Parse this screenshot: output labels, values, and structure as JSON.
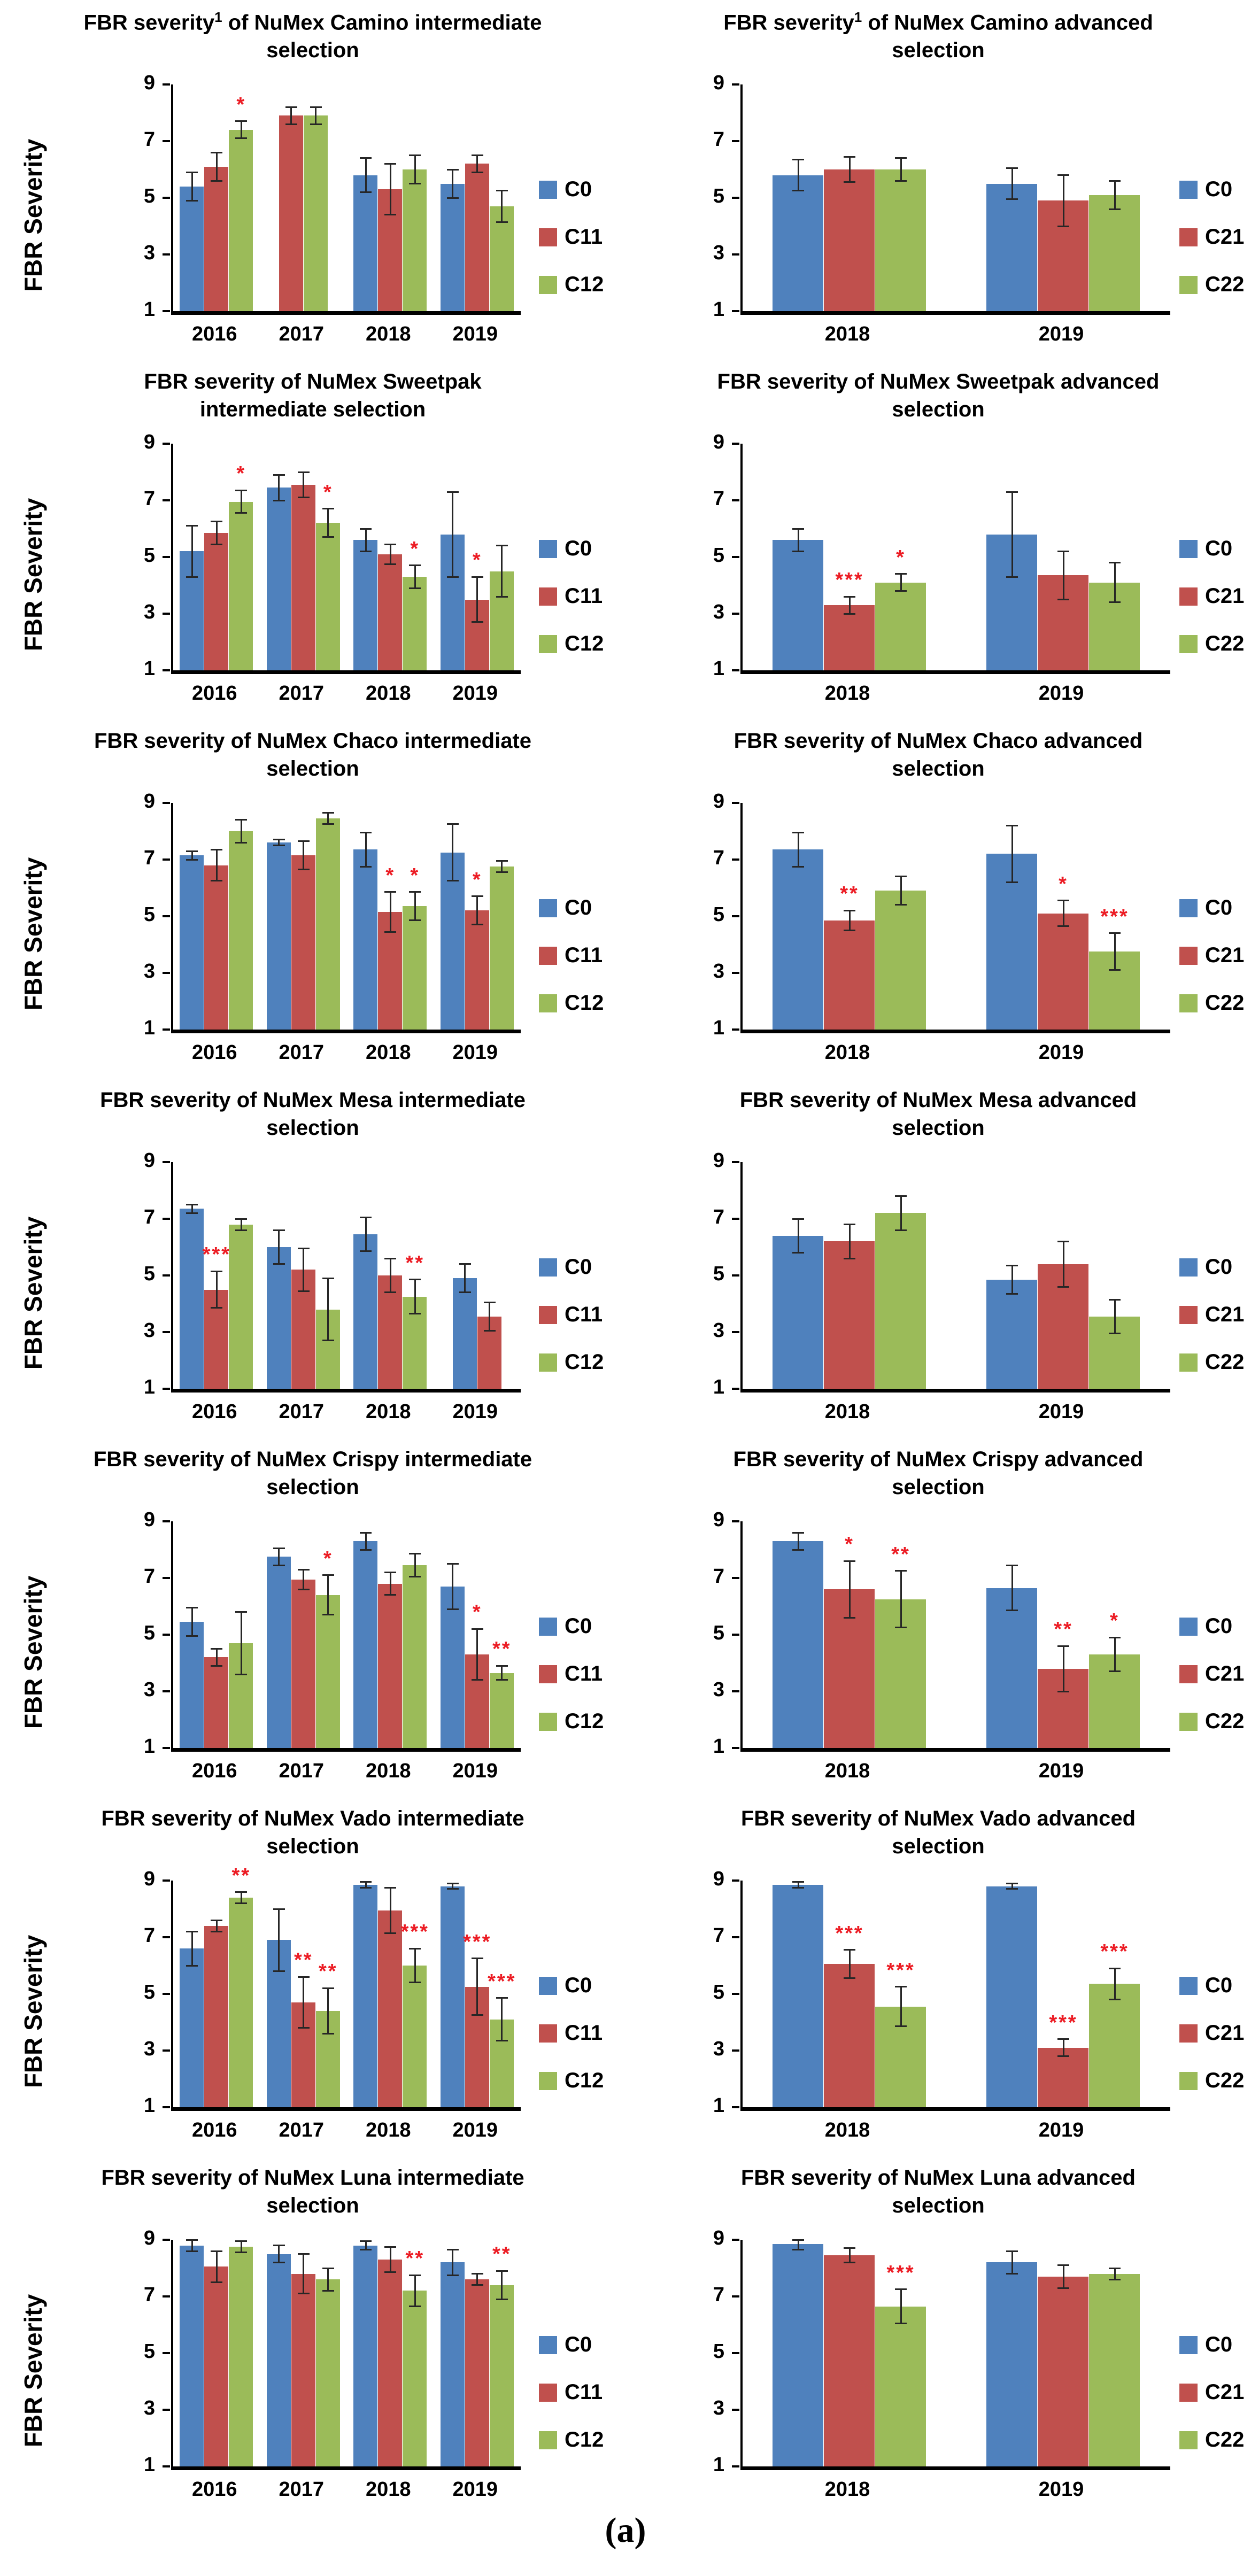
{
  "figure": {
    "ylabel": "FBR Severity",
    "panel_label": "(a)",
    "series_colors": {
      "C0": "#4F81BD",
      "C11": "#C0504D",
      "C12": "#9BBB59",
      "C21": "#C0504D",
      "C22": "#9BBB59"
    },
    "significance_color": "#EC1C24",
    "error_bar_color": "#262626"
  },
  "chart_data": [
    {
      "type": "bar",
      "variety": "Camino",
      "selection": "intermediate",
      "title_pre": "FBR severity",
      "title_sup": "1",
      "title_post": " of NuMex Camino intermediate selection",
      "categories": [
        "2016",
        "2017",
        "2018",
        "2019"
      ],
      "ylim": [
        1,
        9
      ],
      "yticks": [
        9,
        7,
        5,
        3,
        1
      ],
      "series": [
        {
          "name": "C0",
          "values": [
            5.4,
            null,
            5.8,
            5.5
          ],
          "errors": [
            0.5,
            null,
            0.6,
            0.5
          ],
          "sig": [
            "",
            "",
            "",
            ""
          ]
        },
        {
          "name": "C11",
          "values": [
            6.1,
            7.9,
            5.3,
            6.2
          ],
          "errors": [
            0.5,
            0.3,
            0.9,
            0.3
          ],
          "sig": [
            "",
            "",
            "",
            ""
          ]
        },
        {
          "name": "C12",
          "values": [
            7.4,
            7.9,
            6.0,
            4.7
          ],
          "errors": [
            0.3,
            0.3,
            0.5,
            0.55
          ],
          "sig": [
            "*",
            "",
            "",
            ""
          ]
        }
      ]
    },
    {
      "type": "bar",
      "variety": "Camino",
      "selection": "advanced",
      "title_pre": "FBR severity",
      "title_sup": "1",
      "title_post": " of NuMex Camino advanced selection",
      "categories": [
        "2018",
        "2019"
      ],
      "ylim": [
        1,
        9
      ],
      "yticks": [
        9,
        7,
        5,
        3,
        1
      ],
      "series": [
        {
          "name": "C0",
          "values": [
            5.8,
            5.5
          ],
          "errors": [
            0.55,
            0.55
          ],
          "sig": [
            "",
            ""
          ]
        },
        {
          "name": "C21",
          "values": [
            6.0,
            4.9
          ],
          "errors": [
            0.45,
            0.9
          ],
          "sig": [
            "",
            ""
          ]
        },
        {
          "name": "C22",
          "values": [
            6.0,
            5.1
          ],
          "errors": [
            0.4,
            0.5
          ],
          "sig": [
            "",
            ""
          ]
        }
      ]
    },
    {
      "type": "bar",
      "variety": "Sweetpak",
      "selection": "intermediate",
      "title_pre": "FBR severity",
      "title_sup": "",
      "title_post": " of NuMex Sweetpak intermediate selection",
      "categories": [
        "2016",
        "2017",
        "2018",
        "2019"
      ],
      "ylim": [
        1,
        9
      ],
      "yticks": [
        9,
        7,
        5,
        3,
        1
      ],
      "series": [
        {
          "name": "C0",
          "values": [
            5.2,
            7.45,
            5.6,
            5.8
          ],
          "errors": [
            0.9,
            0.45,
            0.4,
            1.5
          ],
          "sig": [
            "",
            "",
            "",
            ""
          ]
        },
        {
          "name": "C11",
          "values": [
            5.85,
            7.55,
            5.1,
            3.5
          ],
          "errors": [
            0.4,
            0.45,
            0.35,
            0.8
          ],
          "sig": [
            "",
            "",
            "",
            "*"
          ]
        },
        {
          "name": "C12",
          "values": [
            6.95,
            6.2,
            4.3,
            4.5
          ],
          "errors": [
            0.4,
            0.5,
            0.4,
            0.9
          ],
          "sig": [
            "*",
            "*",
            "*",
            ""
          ]
        }
      ]
    },
    {
      "type": "bar",
      "variety": "Sweetpak",
      "selection": "advanced",
      "title_pre": "FBR severity",
      "title_sup": "",
      "title_post": " of NuMex Sweetpak advanced selection",
      "categories": [
        "2018",
        "2019"
      ],
      "ylim": [
        1,
        9
      ],
      "yticks": [
        9,
        7,
        5,
        3,
        1
      ],
      "series": [
        {
          "name": "C0",
          "values": [
            5.6,
            5.8
          ],
          "errors": [
            0.4,
            1.5
          ],
          "sig": [
            "",
            ""
          ]
        },
        {
          "name": "C21",
          "values": [
            3.3,
            4.35
          ],
          "errors": [
            0.3,
            0.85
          ],
          "sig": [
            "***",
            ""
          ]
        },
        {
          "name": "C22",
          "values": [
            4.1,
            4.1
          ],
          "errors": [
            0.3,
            0.7
          ],
          "sig": [
            "*",
            ""
          ]
        }
      ]
    },
    {
      "type": "bar",
      "variety": "Chaco",
      "selection": "intermediate",
      "title_pre": "FBR severity",
      "title_sup": "",
      "title_post": " of NuMex Chaco intermediate selection",
      "categories": [
        "2016",
        "2017",
        "2018",
        "2019"
      ],
      "ylim": [
        1,
        9
      ],
      "yticks": [
        9,
        7,
        5,
        3,
        1
      ],
      "series": [
        {
          "name": "C0",
          "values": [
            7.15,
            7.6,
            7.35,
            7.25
          ],
          "errors": [
            0.15,
            0.1,
            0.6,
            1.0
          ],
          "sig": [
            "",
            "",
            "",
            ""
          ]
        },
        {
          "name": "C11",
          "values": [
            6.8,
            7.15,
            5.15,
            5.2
          ],
          "errors": [
            0.55,
            0.5,
            0.7,
            0.5
          ],
          "sig": [
            "",
            "",
            "*",
            "*"
          ]
        },
        {
          "name": "C12",
          "values": [
            8.0,
            8.45,
            5.35,
            6.75
          ],
          "errors": [
            0.4,
            0.2,
            0.5,
            0.2
          ],
          "sig": [
            "",
            "",
            "*",
            ""
          ]
        }
      ]
    },
    {
      "type": "bar",
      "variety": "Chaco",
      "selection": "advanced",
      "title_pre": "FBR severity",
      "title_sup": "",
      "title_post": " of NuMex Chaco advanced selection",
      "categories": [
        "2018",
        "2019"
      ],
      "ylim": [
        1,
        9
      ],
      "yticks": [
        9,
        7,
        5,
        3,
        1
      ],
      "series": [
        {
          "name": "C0",
          "values": [
            7.35,
            7.2
          ],
          "errors": [
            0.6,
            1.0
          ],
          "sig": [
            "",
            ""
          ]
        },
        {
          "name": "C21",
          "values": [
            4.85,
            5.1
          ],
          "errors": [
            0.35,
            0.45
          ],
          "sig": [
            "**",
            "*"
          ]
        },
        {
          "name": "C22",
          "values": [
            5.9,
            3.75
          ],
          "errors": [
            0.5,
            0.65
          ],
          "sig": [
            "",
            "***"
          ]
        }
      ]
    },
    {
      "type": "bar",
      "variety": "Mesa",
      "selection": "intermediate",
      "title_pre": "FBR severity",
      "title_sup": "",
      "title_post": " of NuMex Mesa intermediate selection",
      "categories": [
        "2016",
        "2017",
        "2018",
        "2019"
      ],
      "ylim": [
        1,
        9
      ],
      "yticks": [
        9,
        7,
        5,
        3,
        1
      ],
      "series": [
        {
          "name": "C0",
          "values": [
            7.35,
            6.0,
            6.45,
            4.9
          ],
          "errors": [
            0.15,
            0.6,
            0.6,
            0.5
          ],
          "sig": [
            "",
            "",
            "",
            ""
          ]
        },
        {
          "name": "C11",
          "values": [
            4.5,
            5.2,
            5.0,
            3.55
          ],
          "errors": [
            0.65,
            0.75,
            0.6,
            0.5
          ],
          "sig": [
            "***",
            "",
            "",
            ""
          ]
        },
        {
          "name": "C12",
          "values": [
            6.8,
            3.8,
            4.25,
            null
          ],
          "errors": [
            0.2,
            1.1,
            0.6,
            null
          ],
          "sig": [
            "",
            "",
            "**",
            ""
          ]
        }
      ]
    },
    {
      "type": "bar",
      "variety": "Mesa",
      "selection": "advanced",
      "title_pre": "FBR severity",
      "title_sup": "",
      "title_post": " of NuMex Mesa advanced selection",
      "categories": [
        "2018",
        "2019"
      ],
      "ylim": [
        1,
        9
      ],
      "yticks": [
        9,
        7,
        5,
        3,
        1
      ],
      "series": [
        {
          "name": "C0",
          "values": [
            6.4,
            4.85
          ],
          "errors": [
            0.6,
            0.5
          ],
          "sig": [
            "",
            ""
          ]
        },
        {
          "name": "C21",
          "values": [
            6.2,
            5.4
          ],
          "errors": [
            0.6,
            0.8
          ],
          "sig": [
            "",
            ""
          ]
        },
        {
          "name": "C22",
          "values": [
            7.2,
            3.55
          ],
          "errors": [
            0.6,
            0.6
          ],
          "sig": [
            "",
            ""
          ]
        }
      ]
    },
    {
      "type": "bar",
      "variety": "Crispy",
      "selection": "intermediate",
      "title_pre": "FBR severity",
      "title_sup": "",
      "title_post": " of NuMex Crispy intermediate selection",
      "categories": [
        "2016",
        "2017",
        "2018",
        "2019"
      ],
      "ylim": [
        1,
        9
      ],
      "yticks": [
        9,
        7,
        5,
        3,
        1
      ],
      "series": [
        {
          "name": "C0",
          "values": [
            5.45,
            7.75,
            8.3,
            6.7
          ],
          "errors": [
            0.5,
            0.3,
            0.3,
            0.8
          ],
          "sig": [
            "",
            "",
            "",
            ""
          ]
        },
        {
          "name": "C11",
          "values": [
            4.2,
            6.95,
            6.8,
            4.3
          ],
          "errors": [
            0.3,
            0.35,
            0.4,
            0.9
          ],
          "sig": [
            "",
            "",
            "",
            "*"
          ]
        },
        {
          "name": "C12",
          "values": [
            4.7,
            6.4,
            7.45,
            3.65
          ],
          "errors": [
            1.1,
            0.7,
            0.4,
            0.25
          ],
          "sig": [
            "",
            "*",
            "",
            "**"
          ]
        }
      ]
    },
    {
      "type": "bar",
      "variety": "Crispy",
      "selection": "advanced",
      "title_pre": "FBR severity",
      "title_sup": "",
      "title_post": " of NuMex Crispy advanced selection",
      "categories": [
        "2018",
        "2019"
      ],
      "ylim": [
        1,
        9
      ],
      "yticks": [
        9,
        7,
        5,
        3,
        1
      ],
      "series": [
        {
          "name": "C0",
          "values": [
            8.3,
            6.65
          ],
          "errors": [
            0.3,
            0.8
          ],
          "sig": [
            "",
            ""
          ]
        },
        {
          "name": "C21",
          "values": [
            6.6,
            3.8
          ],
          "errors": [
            1.0,
            0.8
          ],
          "sig": [
            "*",
            "**"
          ]
        },
        {
          "name": "C22",
          "values": [
            6.25,
            4.3
          ],
          "errors": [
            1.0,
            0.6
          ],
          "sig": [
            "**",
            "*"
          ]
        }
      ]
    },
    {
      "type": "bar",
      "variety": "Vado",
      "selection": "intermediate",
      "title_pre": "FBR severity",
      "title_sup": "",
      "title_post": " of NuMex Vado intermediate selection",
      "categories": [
        "2016",
        "2017",
        "2018",
        "2019"
      ],
      "ylim": [
        1,
        9
      ],
      "yticks": [
        9,
        7,
        5,
        3,
        1
      ],
      "series": [
        {
          "name": "C0",
          "values": [
            6.6,
            6.9,
            8.85,
            8.8
          ],
          "errors": [
            0.6,
            1.1,
            0.1,
            0.1
          ],
          "sig": [
            "",
            "",
            "",
            ""
          ]
        },
        {
          "name": "C11",
          "values": [
            7.4,
            4.7,
            7.95,
            5.25
          ],
          "errors": [
            0.2,
            0.9,
            0.8,
            1.0
          ],
          "sig": [
            "",
            "**",
            "",
            "***"
          ]
        },
        {
          "name": "C12",
          "values": [
            8.4,
            4.4,
            6.0,
            4.1
          ],
          "errors": [
            0.2,
            0.8,
            0.6,
            0.75
          ],
          "sig": [
            "**",
            "**",
            "***",
            "***"
          ]
        }
      ]
    },
    {
      "type": "bar",
      "variety": "Vado",
      "selection": "advanced",
      "title_pre": "FBR severity",
      "title_sup": "",
      "title_post": " of NuMex Vado advanced selection",
      "categories": [
        "2018",
        "2019"
      ],
      "ylim": [
        1,
        9
      ],
      "yticks": [
        9,
        7,
        5,
        3,
        1
      ],
      "series": [
        {
          "name": "C0",
          "values": [
            8.85,
            8.8
          ],
          "errors": [
            0.1,
            0.1
          ],
          "sig": [
            "",
            ""
          ]
        },
        {
          "name": "C21",
          "values": [
            6.05,
            3.1
          ],
          "errors": [
            0.5,
            0.3
          ],
          "sig": [
            "***",
            "***"
          ]
        },
        {
          "name": "C22",
          "values": [
            4.55,
            5.35
          ],
          "errors": [
            0.7,
            0.55
          ],
          "sig": [
            "***",
            "***"
          ]
        }
      ]
    },
    {
      "type": "bar",
      "variety": "Luna",
      "selection": "intermediate",
      "title_pre": "FBR severity",
      "title_sup": "",
      "title_post": " of NuMex Luna intermediate selection",
      "categories": [
        "2016",
        "2017",
        "2018",
        "2019"
      ],
      "ylim": [
        1,
        9
      ],
      "yticks": [
        9,
        7,
        5,
        3,
        1
      ],
      "series": [
        {
          "name": "C0",
          "values": [
            8.8,
            8.5,
            8.8,
            8.2
          ],
          "errors": [
            0.2,
            0.3,
            0.15,
            0.45
          ],
          "sig": [
            "",
            "",
            "",
            ""
          ]
        },
        {
          "name": "C11",
          "values": [
            8.05,
            7.8,
            8.3,
            7.6
          ],
          "errors": [
            0.55,
            0.7,
            0.45,
            0.2
          ],
          "sig": [
            "",
            "",
            "",
            ""
          ]
        },
        {
          "name": "C12",
          "values": [
            8.75,
            7.6,
            7.2,
            7.4
          ],
          "errors": [
            0.2,
            0.4,
            0.55,
            0.5
          ],
          "sig": [
            "",
            "",
            "**",
            "**"
          ]
        }
      ]
    },
    {
      "type": "bar",
      "variety": "Luna",
      "selection": "advanced",
      "title_pre": "FBR severity",
      "title_sup": "",
      "title_post": " of NuMex Luna advanced selection",
      "categories": [
        "2018",
        "2019"
      ],
      "ylim": [
        1,
        9
      ],
      "yticks": [
        9,
        7,
        5,
        3,
        1
      ],
      "series": [
        {
          "name": "C0",
          "values": [
            8.85,
            8.2
          ],
          "errors": [
            0.2,
            0.4
          ],
          "sig": [
            "",
            ""
          ]
        },
        {
          "name": "C21",
          "values": [
            8.45,
            7.7
          ],
          "errors": [
            0.25,
            0.4
          ],
          "sig": [
            "",
            ""
          ]
        },
        {
          "name": "C22",
          "values": [
            6.65,
            7.8
          ],
          "errors": [
            0.6,
            0.2
          ],
          "sig": [
            "***",
            ""
          ]
        }
      ]
    }
  ]
}
